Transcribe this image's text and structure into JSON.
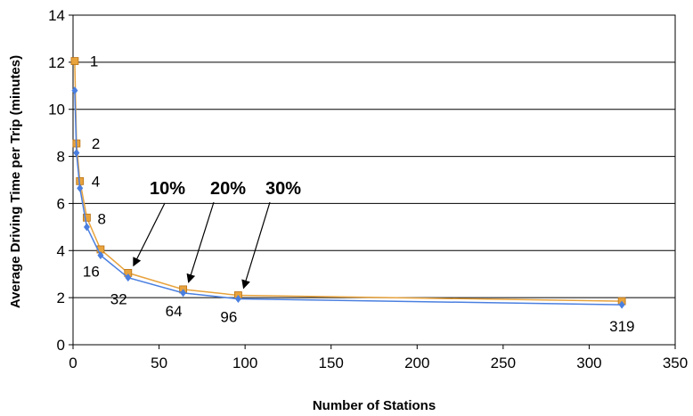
{
  "chart_data": {
    "type": "line",
    "title": "",
    "xlabel": "Number of Stations",
    "ylabel": "Average Driving Time per Trip (minutes)",
    "xlim": [
      0,
      350
    ],
    "ylim": [
      0,
      14
    ],
    "x_ticks": [
      "0",
      "50",
      "100",
      "150",
      "200",
      "250",
      "300",
      "350"
    ],
    "y_ticks": [
      "0",
      "2",
      "4",
      "6",
      "8",
      "10",
      "12",
      "14"
    ],
    "grid": "horizontal",
    "series": [
      {
        "color": "#e8a33d",
        "marker": "square",
        "x": [
          1,
          2,
          4,
          8,
          16,
          32,
          64,
          96,
          319
        ],
        "y": [
          12.05,
          8.55,
          6.95,
          5.4,
          4.05,
          3.05,
          2.35,
          2.1,
          1.85
        ]
      },
      {
        "color": "#4a7fe0",
        "marker": "diamond",
        "x": [
          1,
          2,
          4,
          8,
          16,
          32,
          64,
          96,
          319
        ],
        "y": [
          10.8,
          8.15,
          6.65,
          5.0,
          3.8,
          2.85,
          2.2,
          1.95,
          1.7
        ]
      }
    ],
    "point_labels": [
      {
        "x": 1,
        "y": 12.05,
        "text": "1"
      },
      {
        "x": 2,
        "y": 8.55,
        "text": "2"
      },
      {
        "x": 4,
        "y": 6.95,
        "text": "4"
      },
      {
        "x": 8,
        "y": 5.4,
        "text": "8"
      },
      {
        "x": 16,
        "y": 3.8,
        "text": "16"
      },
      {
        "x": 32,
        "y": 2.85,
        "text": "32"
      },
      {
        "x": 64,
        "y": 2.2,
        "text": "64"
      },
      {
        "x": 96,
        "y": 1.95,
        "text": "96"
      },
      {
        "x": 319,
        "y": 1.7,
        "text": "319"
      }
    ],
    "annotations": [
      {
        "text": "10%",
        "target_x": 32,
        "target_y": 3.05
      },
      {
        "text": "20%",
        "target_x": 64,
        "target_y": 2.35
      },
      {
        "text": "30%",
        "target_x": 96,
        "target_y": 2.1
      }
    ]
  }
}
